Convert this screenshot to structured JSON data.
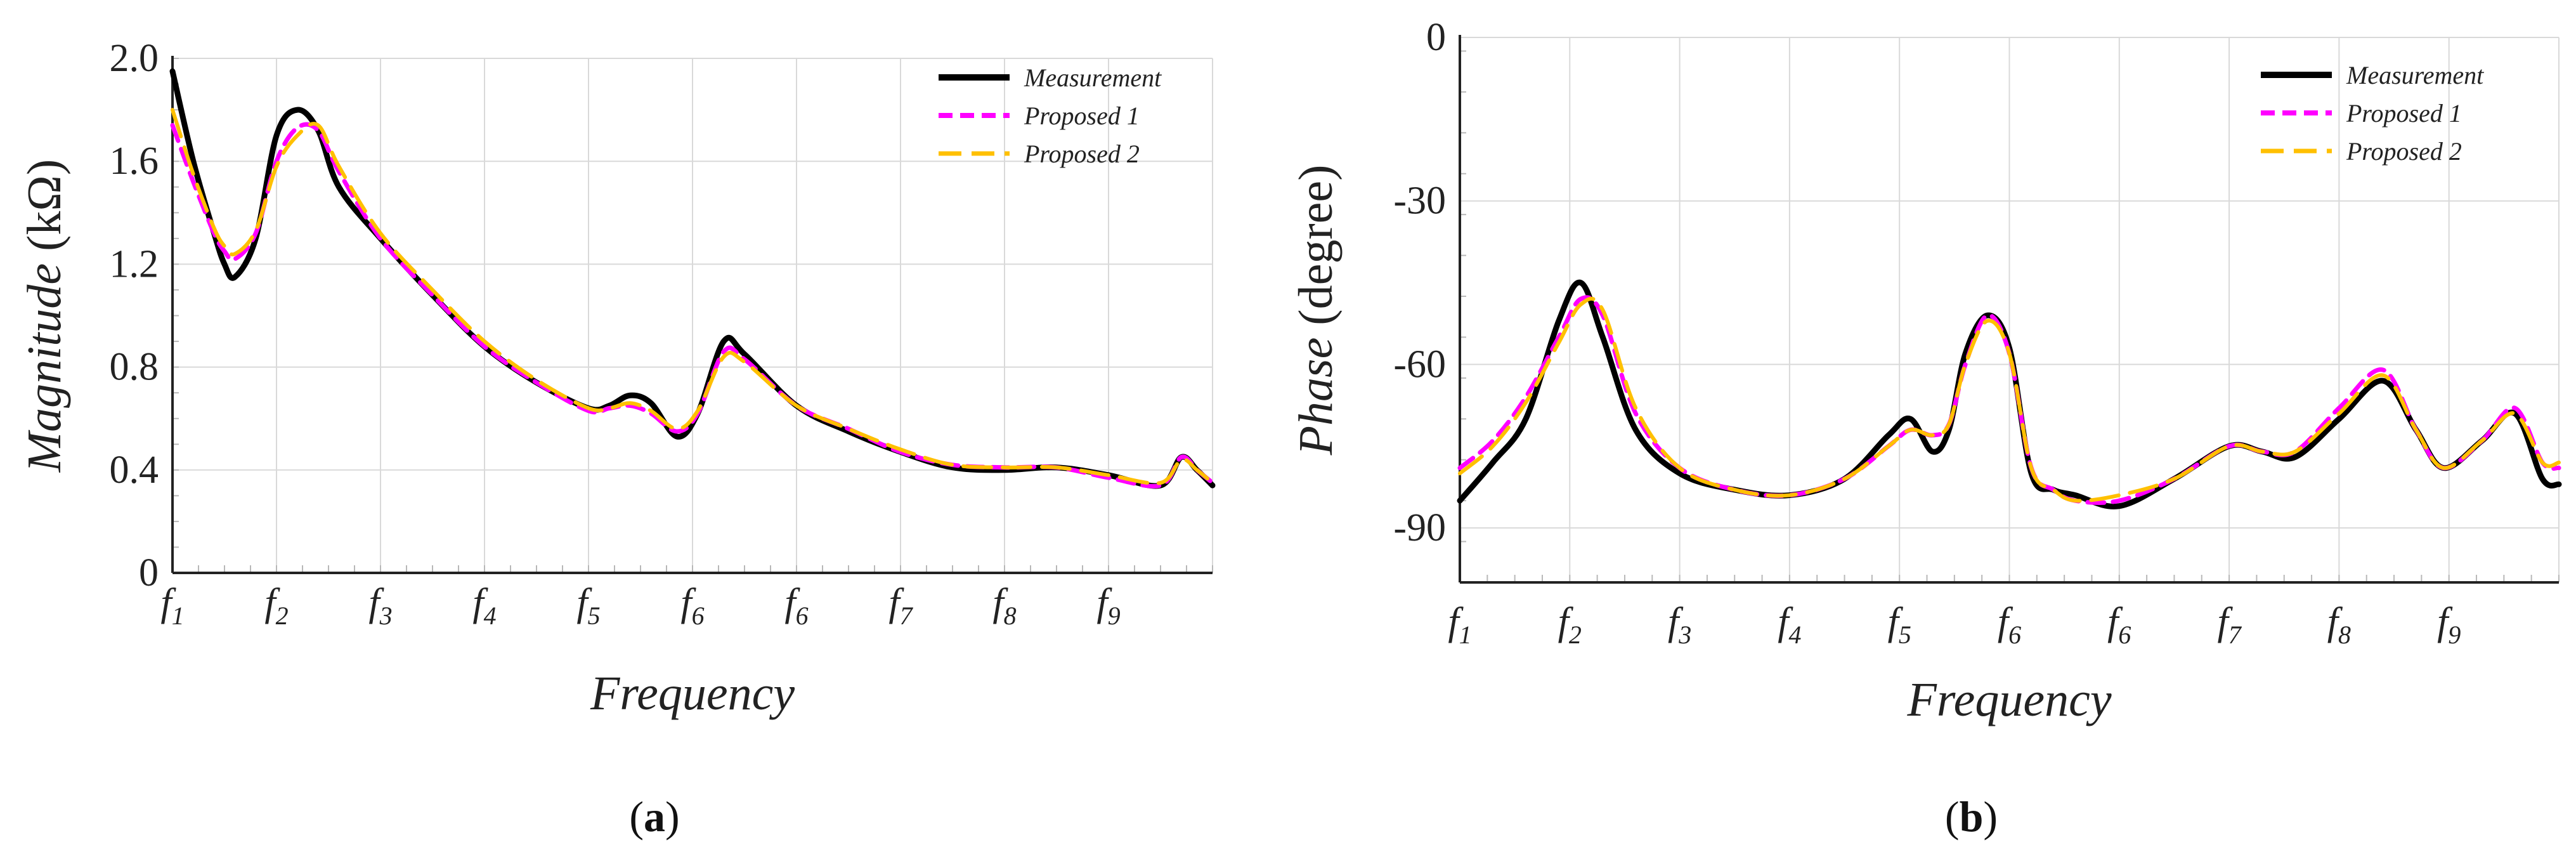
{
  "chart_data": [
    {
      "panel": "(a)",
      "panel_letter": "a",
      "type": "line",
      "xlabel": "Frequency",
      "ylabel_italic": "Magnitude",
      "ylabel_unit": "(kΩ)",
      "ylim": [
        0,
        2.0
      ],
      "xlim": [
        0,
        10
      ],
      "yticks": [
        0,
        0.4,
        0.8,
        1.2,
        1.6,
        2.0
      ],
      "ytick_labels": [
        "0",
        "0.4",
        "0.8",
        "1.2",
        "1.6",
        "2.0"
      ],
      "xtick_labels": [
        [
          "f",
          "1"
        ],
        [
          "f",
          "2"
        ],
        [
          "f",
          "3"
        ],
        [
          "f",
          "4"
        ],
        [
          "f",
          "5"
        ],
        [
          "f",
          "6"
        ],
        [
          "f",
          "6"
        ],
        [
          "f",
          "7"
        ],
        [
          "f",
          "8"
        ],
        [
          "f",
          "9"
        ]
      ],
      "legend": [
        "Measurement",
        "Proposed 1",
        "Proposed 2"
      ],
      "series": [
        {
          "name": "Measurement",
          "color": "#000000",
          "dash": "solid",
          "x": [
            0,
            0.2,
            0.4,
            0.5,
            0.6,
            0.8,
            1.0,
            1.2,
            1.4,
            1.6,
            2.0,
            2.5,
            3.0,
            3.5,
            4.0,
            4.2,
            4.4,
            4.6,
            4.85,
            5.05,
            5.3,
            5.5,
            6.0,
            6.5,
            7.0,
            7.5,
            8.0,
            8.5,
            9.0,
            9.5,
            9.7,
            9.85,
            10.0
          ],
          "y": [
            1.95,
            1.6,
            1.32,
            1.2,
            1.15,
            1.3,
            1.7,
            1.8,
            1.72,
            1.5,
            1.3,
            1.08,
            0.88,
            0.74,
            0.64,
            0.65,
            0.69,
            0.66,
            0.53,
            0.62,
            0.9,
            0.85,
            0.65,
            0.55,
            0.47,
            0.41,
            0.4,
            0.41,
            0.38,
            0.34,
            0.45,
            0.4,
            0.34
          ]
        },
        {
          "name": "Proposed 1",
          "color": "#ff00ff",
          "dash": "short",
          "x": [
            0,
            0.2,
            0.4,
            0.5,
            0.6,
            0.8,
            1.0,
            1.2,
            1.4,
            1.6,
            2.0,
            2.5,
            3.0,
            3.5,
            4.0,
            4.2,
            4.4,
            4.6,
            4.85,
            5.05,
            5.3,
            5.5,
            6.0,
            6.5,
            7.0,
            7.5,
            8.0,
            8.5,
            9.0,
            9.5,
            9.7,
            9.85,
            10.0
          ],
          "y": [
            1.74,
            1.52,
            1.32,
            1.25,
            1.22,
            1.32,
            1.6,
            1.73,
            1.72,
            1.56,
            1.3,
            1.08,
            0.88,
            0.74,
            0.63,
            0.64,
            0.65,
            0.62,
            0.55,
            0.62,
            0.86,
            0.83,
            0.65,
            0.56,
            0.47,
            0.42,
            0.41,
            0.41,
            0.37,
            0.34,
            0.45,
            0.4,
            0.35
          ]
        },
        {
          "name": "Proposed 2",
          "color": "#ffc000",
          "dash": "long",
          "x": [
            0,
            0.2,
            0.4,
            0.5,
            0.6,
            0.8,
            1.0,
            1.2,
            1.4,
            1.6,
            2.0,
            2.5,
            3.0,
            3.5,
            4.0,
            4.2,
            4.4,
            4.6,
            4.85,
            5.05,
            5.3,
            5.5,
            6.0,
            6.5,
            7.0,
            7.5,
            8.0,
            8.5,
            9.0,
            9.5,
            9.7,
            9.85,
            10.0
          ],
          "y": [
            1.8,
            1.55,
            1.34,
            1.27,
            1.24,
            1.33,
            1.58,
            1.7,
            1.74,
            1.58,
            1.32,
            1.1,
            0.9,
            0.75,
            0.64,
            0.64,
            0.66,
            0.63,
            0.56,
            0.63,
            0.84,
            0.82,
            0.65,
            0.56,
            0.48,
            0.42,
            0.41,
            0.41,
            0.38,
            0.35,
            0.44,
            0.4,
            0.35
          ]
        }
      ]
    },
    {
      "panel": "(b)",
      "panel_letter": "b",
      "type": "line",
      "xlabel": "Frequency",
      "ylabel_italic": "Phase",
      "ylabel_unit": "(degree)",
      "ylim": [
        -100,
        0
      ],
      "xlim": [
        0,
        10
      ],
      "yticks": [
        0,
        -30,
        -60,
        -90
      ],
      "ytick_labels": [
        "0",
        "-30",
        "-60",
        "-90"
      ],
      "xtick_labels": [
        [
          "f",
          "1"
        ],
        [
          "f",
          "2"
        ],
        [
          "f",
          "3"
        ],
        [
          "f",
          "4"
        ],
        [
          "f",
          "5"
        ],
        [
          "f",
          "6"
        ],
        [
          "f",
          "6"
        ],
        [
          "f",
          "7"
        ],
        [
          "f",
          "8"
        ],
        [
          "f",
          "9"
        ]
      ],
      "legend": [
        "Measurement",
        "Proposed 1",
        "Proposed 2"
      ],
      "series": [
        {
          "name": "Measurement",
          "color": "#000000",
          "dash": "solid",
          "x": [
            0,
            0.3,
            0.6,
            0.9,
            1.1,
            1.3,
            1.6,
            2.0,
            2.5,
            3.0,
            3.5,
            3.9,
            4.1,
            4.3,
            4.45,
            4.6,
            4.8,
            5.0,
            5.2,
            5.4,
            5.6,
            6.0,
            6.5,
            7.0,
            7.3,
            7.6,
            8.0,
            8.4,
            8.7,
            8.95,
            9.3,
            9.6,
            9.85,
            10.0
          ],
          "y": [
            -85,
            -78,
            -70,
            -52,
            -45,
            -55,
            -72,
            -80,
            -83,
            -84,
            -81,
            -73,
            -70,
            -76,
            -72,
            -58,
            -51,
            -57,
            -80,
            -83,
            -84,
            -86,
            -81,
            -75,
            -76,
            -77,
            -70,
            -63,
            -72,
            -79,
            -74,
            -69,
            -81,
            -82
          ]
        },
        {
          "name": "Proposed 1",
          "color": "#ff00ff",
          "dash": "short",
          "x": [
            0,
            0.3,
            0.6,
            0.9,
            1.1,
            1.3,
            1.6,
            2.0,
            2.5,
            3.0,
            3.5,
            3.9,
            4.1,
            4.3,
            4.45,
            4.6,
            4.8,
            5.0,
            5.2,
            5.4,
            5.6,
            6.0,
            6.5,
            7.0,
            7.3,
            7.6,
            8.0,
            8.4,
            8.7,
            8.95,
            9.3,
            9.6,
            9.85,
            10.0
          ],
          "y": [
            -79,
            -74,
            -66,
            -55,
            -48,
            -51,
            -69,
            -79,
            -83,
            -84,
            -81,
            -75,
            -72,
            -73,
            -71,
            -60,
            -51,
            -58,
            -79,
            -83,
            -85,
            -85,
            -81,
            -75,
            -76,
            -76,
            -68,
            -61,
            -72,
            -79,
            -74,
            -68,
            -78,
            -79
          ]
        },
        {
          "name": "Proposed 2",
          "color": "#ffc000",
          "dash": "long",
          "x": [
            0,
            0.3,
            0.6,
            0.9,
            1.1,
            1.3,
            1.6,
            2.0,
            2.5,
            3.0,
            3.5,
            3.9,
            4.1,
            4.3,
            4.45,
            4.6,
            4.8,
            5.0,
            5.2,
            5.4,
            5.6,
            6.0,
            6.5,
            7.0,
            7.3,
            7.6,
            8.0,
            8.4,
            8.7,
            8.95,
            9.3,
            9.6,
            9.85,
            10.0
          ],
          "y": [
            -80,
            -75,
            -67,
            -56,
            -49,
            -50,
            -68,
            -79,
            -83,
            -84,
            -81,
            -75,
            -72,
            -73,
            -71,
            -60,
            -52,
            -58,
            -79,
            -83,
            -85,
            -84,
            -81,
            -75,
            -76,
            -76,
            -69,
            -62,
            -72,
            -79,
            -74,
            -69,
            -78,
            -78
          ]
        }
      ]
    }
  ]
}
